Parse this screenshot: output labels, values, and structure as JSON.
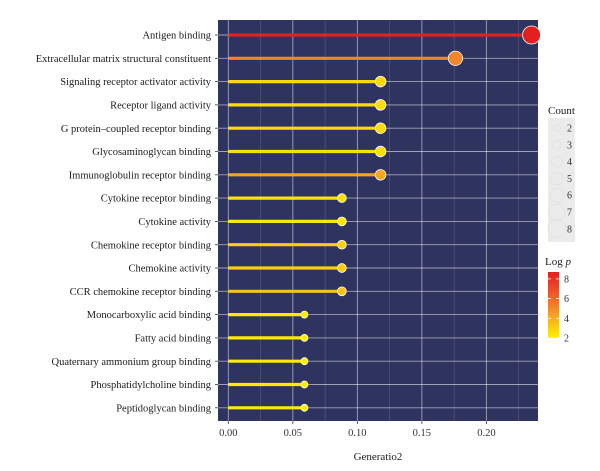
{
  "chart_data": {
    "type": "lollipop",
    "xlabel": "Generatio2",
    "xlim": [
      -0.008,
      0.24
    ],
    "x_ticks": [
      0.0,
      0.05,
      0.1,
      0.15,
      0.2
    ],
    "x_tick_labels": [
      "0.00",
      "0.05",
      "0.10",
      "0.15",
      "0.20"
    ],
    "categories": [
      "Antigen binding",
      "Extracellular matrix structural constituent",
      "Signaling receptor activator activity",
      "Receptor ligand activity",
      "G protein–coupled receptor binding",
      "Glycosaminoglycan binding",
      "Immunoglobulin receptor binding",
      "Cytokine receptor binding",
      "Cytokine activity",
      "Chemokine receptor binding",
      "Chemokine activity",
      "CCR chemokine receptor binding",
      "Monocarboxylic acid binding",
      "Fatty acid binding",
      "Quaternary ammonium group binding",
      "Phosphatidylcholine binding",
      "Peptidoglycan binding"
    ],
    "gene_ratio": [
      0.235,
      0.176,
      0.118,
      0.118,
      0.118,
      0.118,
      0.118,
      0.088,
      0.088,
      0.088,
      0.088,
      0.088,
      0.059,
      0.059,
      0.059,
      0.059,
      0.059
    ],
    "count": [
      8,
      6,
      4,
      4,
      4,
      4,
      4,
      3,
      3,
      3,
      3,
      3,
      2,
      2,
      2,
      2,
      2
    ],
    "log_p": [
      8.7,
      5.2,
      2.8,
      2.6,
      2.7,
      2.6,
      4.2,
      2.5,
      2.3,
      3.0,
      3.1,
      3.4,
      2.2,
      2.2,
      2.2,
      2.2,
      2.2
    ],
    "background": "#2e3360",
    "grid": true,
    "legends": {
      "count": {
        "title": "Count",
        "values": [
          2,
          3,
          4,
          5,
          6,
          7,
          8
        ],
        "labels": [
          "2",
          "3",
          "4",
          "5",
          "6",
          "7",
          "8"
        ]
      },
      "log_p": {
        "title_main": "Log",
        "title_var": "p",
        "range": [
          2,
          8.7
        ],
        "ticks": [
          2,
          4,
          6,
          8
        ],
        "tick_labels": [
          "2",
          "4",
          "6",
          "8"
        ],
        "colors": [
          "#fff200",
          "#f5a623",
          "#ef5a2c",
          "#e3201f"
        ]
      }
    }
  }
}
